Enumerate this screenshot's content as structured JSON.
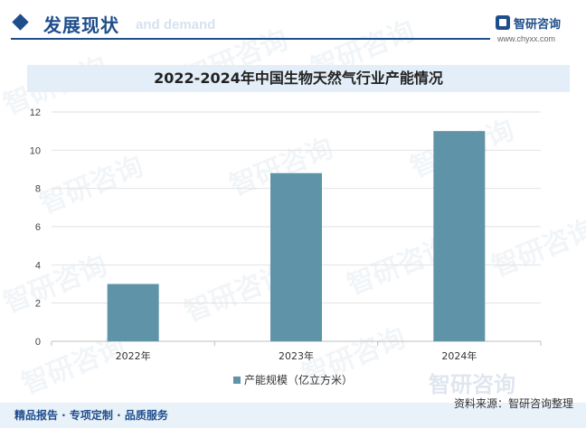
{
  "header": {
    "title": "发展现状",
    "ghost_text": "and demand"
  },
  "logo": {
    "name": "智研咨询",
    "url": "www.chyxx.com",
    "icon": "logo-mark-icon"
  },
  "watermark_text": "智研咨询",
  "chart_data": {
    "type": "bar",
    "title": "2022-2024年中国生物天然气行业产能情况",
    "categories": [
      "2022年",
      "2023年",
      "2024年"
    ],
    "series": [
      {
        "name": "产能规模（亿立方米）",
        "values": [
          3,
          8.8,
          11
        ],
        "color": "#5e93a8"
      }
    ],
    "ylim": [
      0,
      12
    ],
    "yticks": [
      "0",
      "2",
      "4",
      "6",
      "8",
      "10",
      "12"
    ],
    "grid": true,
    "legend_position": "bottom-center"
  },
  "footer": {
    "left": "精品报告 · 专项定制 · 品质服务",
    "source": "资料来源：智研咨询整理"
  },
  "colors": {
    "brand": "#1f4e8c",
    "bar": "#5e93a8",
    "banner": "#e3eef8"
  }
}
